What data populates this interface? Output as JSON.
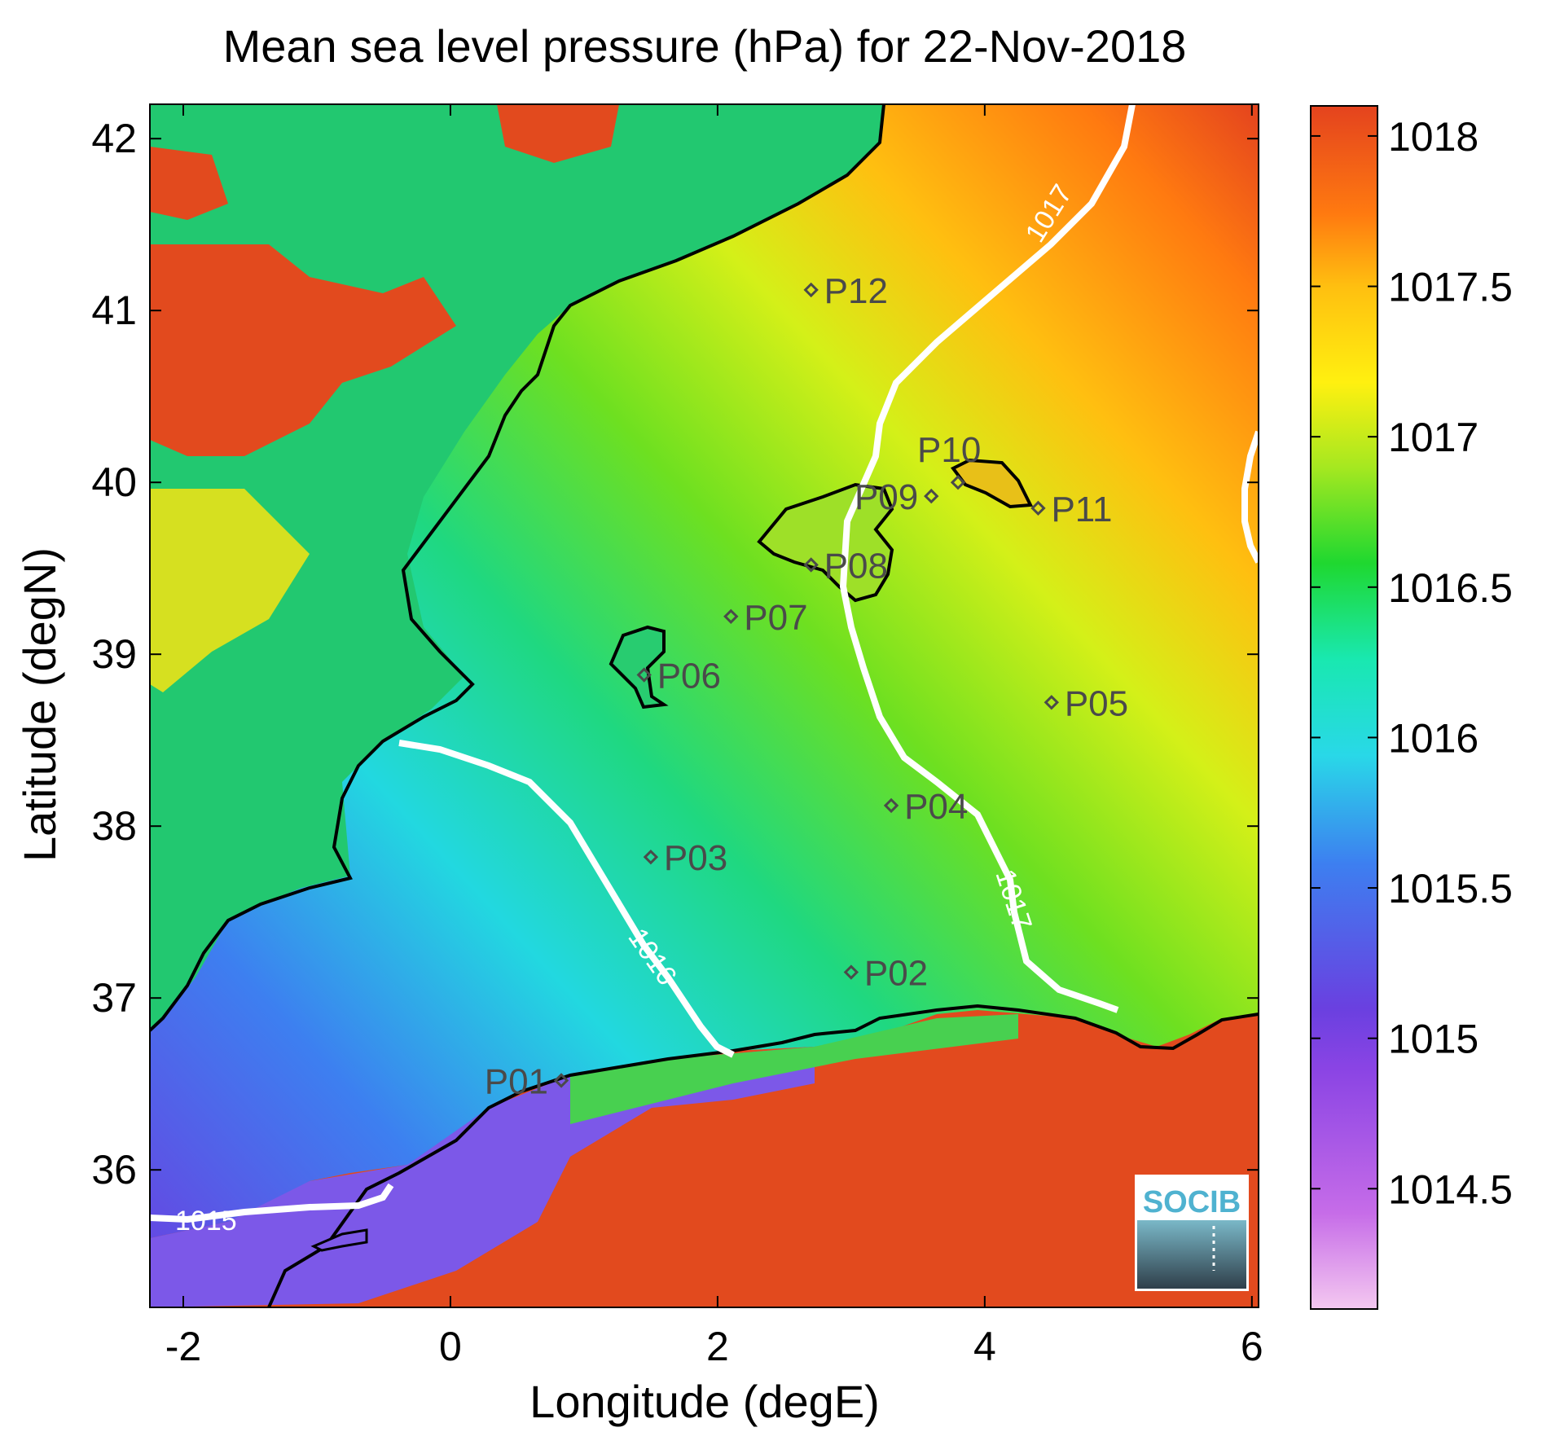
{
  "title": "Mean sea level pressure (hPa) for 22-Nov-2018",
  "x_axis": {
    "label": "Longitude (degE)",
    "ticks": [
      "-2",
      "0",
      "2",
      "4",
      "6"
    ],
    "range": [
      -2.25,
      6.05
    ]
  },
  "y_axis": {
    "label": "Latitude (degN)",
    "ticks": [
      "36",
      "37",
      "38",
      "39",
      "40",
      "41",
      "42"
    ],
    "range": [
      35.2,
      42.2
    ]
  },
  "colorbar": {
    "ticks": [
      "1014.5",
      "1015",
      "1015.5",
      "1016",
      "1016.5",
      "1017",
      "1017.5",
      "1018"
    ],
    "range": [
      1014.1,
      1018.1
    ],
    "colors": [
      "#e9a2e8",
      "#b44ee8",
      "#6a40e0",
      "#3d7ff0",
      "#29c8f0",
      "#19e8c0",
      "#1fd860",
      "#6ee020",
      "#d4f018",
      "#fff010",
      "#ffbf10",
      "#ff7a10",
      "#e4431e"
    ]
  },
  "points": [
    {
      "label": "P01",
      "lon": 0.83,
      "lat": 36.52
    },
    {
      "label": "P02",
      "lon": 3.0,
      "lat": 37.15
    },
    {
      "label": "P03",
      "lon": 1.5,
      "lat": 37.82
    },
    {
      "label": "P04",
      "lon": 3.3,
      "lat": 38.12
    },
    {
      "label": "P05",
      "lon": 4.5,
      "lat": 38.72
    },
    {
      "label": "P06",
      "lon": 1.45,
      "lat": 38.88
    },
    {
      "label": "P07",
      "lon": 2.1,
      "lat": 39.22
    },
    {
      "label": "P08",
      "lon": 2.7,
      "lat": 39.52
    },
    {
      "label": "P09",
      "lon": 3.6,
      "lat": 39.92
    },
    {
      "label": "P10",
      "lon": 3.8,
      "lat": 40.0
    },
    {
      "label": "P11",
      "lon": 4.4,
      "lat": 39.85
    },
    {
      "label": "P12",
      "lon": 2.7,
      "lat": 41.12
    }
  ],
  "contours": [
    {
      "label": "1015",
      "level": 1015
    },
    {
      "label": "1016",
      "level": 1016
    },
    {
      "label": "1017",
      "level": 1017
    }
  ],
  "logo": {
    "text": "SOCIB"
  }
}
